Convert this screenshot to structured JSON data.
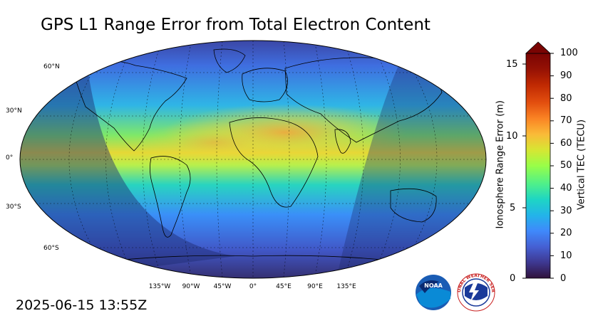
{
  "title": "GPS L1 Range Error from Total Electron Content",
  "timestamp": "2025-06-15 13:55Z",
  "map": {
    "lat_labels": [
      "60°N",
      "30°N",
      "0°",
      "30°S",
      "60°S"
    ],
    "lon_labels": [
      "135°W",
      "90°W",
      "45°W",
      "0°",
      "45°E",
      "90°E",
      "135°E"
    ]
  },
  "colorbar": {
    "left_axis_title": "Ionosphere Range Error (m)",
    "left_ticks": [
      "15",
      "10",
      "5",
      "0"
    ],
    "right_axis_title": "Vertical TEC (TECU)",
    "right_ticks": [
      "100",
      "90",
      "80",
      "70",
      "60",
      "50",
      "40",
      "30",
      "20",
      "10",
      "0"
    ],
    "colors": [
      "#30123b",
      "#3e3891",
      "#4560d3",
      "#3f89fb",
      "#23b4e9",
      "#1ed5c4",
      "#4ff08a",
      "#98fe48",
      "#d6e633",
      "#fabb38",
      "#fa8424",
      "#e34f0f",
      "#c02902",
      "#951104",
      "#7a0403"
    ]
  },
  "logos": {
    "noaa": "NOAA",
    "nws_ring": "NATIONAL WEATHER SERVICE"
  },
  "colors": {
    "background": "#ffffff",
    "night_shade": "#1c2a6e",
    "equatorial_max": "#f0a030"
  }
}
